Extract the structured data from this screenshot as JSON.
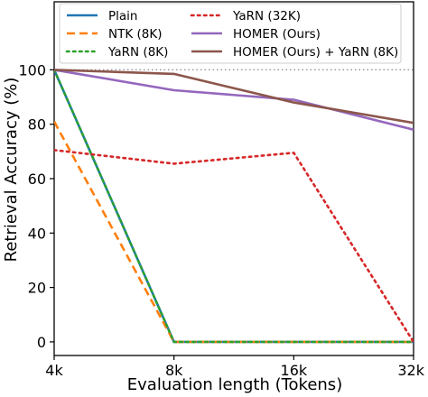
{
  "chart_data": {
    "type": "line",
    "xlabel": "Evaluation length (Tokens)",
    "ylabel": "Retrieval Accuracy (%)",
    "x": [
      4,
      8,
      16,
      32
    ],
    "x_scale": "log2",
    "x_tick_labels": [
      "4k",
      "8k",
      "16k",
      "32k"
    ],
    "ylim": [
      -5,
      125
    ],
    "y_ticks": [
      0,
      20,
      40,
      60,
      80,
      100
    ],
    "grid": false,
    "reference_line": {
      "y": 100,
      "style": "dotted",
      "color": "#888888"
    },
    "legend_placement": "top",
    "series": [
      {
        "name": "Plain",
        "values": [
          100,
          0,
          0,
          0
        ],
        "color": "#1f77b4",
        "dash": "solid"
      },
      {
        "name": "NTK (8K)",
        "values": [
          81,
          0,
          0,
          0
        ],
        "color": "#ff7f0e",
        "dash": "dashed"
      },
      {
        "name": "YaRN (8K)",
        "values": [
          100,
          0,
          0,
          0
        ],
        "color": "#2ca02c",
        "dash": "dotted"
      },
      {
        "name": "YaRN (32K)",
        "values": [
          70.5,
          65.5,
          69.5,
          0
        ],
        "color": "#d62728",
        "dash": "dotted"
      },
      {
        "name": "HOMER (Ours)",
        "values": [
          100,
          92.5,
          89,
          78
        ],
        "color": "#9467bd",
        "dash": "solid"
      },
      {
        "name": "HOMER (Ours) + YaRN (8K)",
        "values": [
          100,
          98.5,
          88,
          80.5
        ],
        "color": "#8c564b",
        "dash": "solid"
      }
    ]
  }
}
